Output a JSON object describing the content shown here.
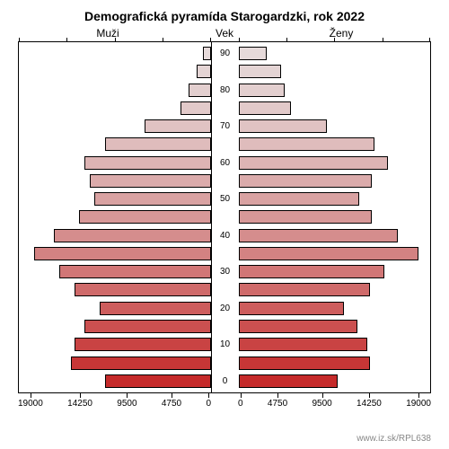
{
  "chart": {
    "type": "population-pyramid",
    "title": "Demografická pyramída Starogardzki, rok 2022",
    "labels": {
      "left": "Muži",
      "center": "Vek",
      "right": "Ženy"
    },
    "source": "www.iz.sk/RPL638",
    "background_color": "#ffffff",
    "border_color": "#000000",
    "title_fontsize": 14,
    "label_fontsize": 12,
    "tick_fontsize": 10,
    "x_axis": {
      "max": 19000,
      "ticks": [
        "19000",
        "14250",
        "9500",
        "4750",
        "0"
      ],
      "ticks_right": [
        "0",
        "4750",
        "9500",
        "14250",
        "19000"
      ]
    },
    "age_groups_top_to_bottom": [
      {
        "age": "90",
        "male": 800,
        "female": 2800,
        "male_color": "#e6dada",
        "female_color": "#e6dada"
      },
      {
        "age": "",
        "male": 1400,
        "female": 4200,
        "male_color": "#e4d4d4",
        "female_color": "#e4d4d4"
      },
      {
        "age": "80",
        "male": 2200,
        "female": 4600,
        "male_color": "#e3cfcf",
        "female_color": "#e3cfcf"
      },
      {
        "age": "",
        "male": 3000,
        "female": 5200,
        "male_color": "#e2caca",
        "female_color": "#e2caca"
      },
      {
        "age": "70",
        "male": 6500,
        "female": 8800,
        "male_color": "#e0c3c3",
        "female_color": "#e0c3c3"
      },
      {
        "age": "",
        "male": 10500,
        "female": 13500,
        "male_color": "#dfbcbc",
        "female_color": "#dfbcbc"
      },
      {
        "age": "60",
        "male": 12500,
        "female": 14800,
        "male_color": "#ddb4b4",
        "female_color": "#ddb4b4"
      },
      {
        "age": "",
        "male": 12000,
        "female": 13200,
        "male_color": "#dbabab",
        "female_color": "#dbabab"
      },
      {
        "age": "50",
        "male": 11500,
        "female": 12000,
        "male_color": "#d9a2a2",
        "female_color": "#d9a2a2"
      },
      {
        "age": "",
        "male": 13000,
        "female": 13200,
        "male_color": "#d79898",
        "female_color": "#d79898"
      },
      {
        "age": "40",
        "male": 15500,
        "female": 15800,
        "male_color": "#d58d8d",
        "female_color": "#d58d8d"
      },
      {
        "age": "",
        "male": 17500,
        "female": 17800,
        "male_color": "#d38282",
        "female_color": "#d38282"
      },
      {
        "age": "30",
        "male": 15000,
        "female": 14500,
        "male_color": "#d17676",
        "female_color": "#d17676"
      },
      {
        "age": "",
        "male": 13500,
        "female": 13000,
        "male_color": "#cf6a6a",
        "female_color": "#cf6a6a"
      },
      {
        "age": "20",
        "male": 11000,
        "female": 10500,
        "male_color": "#cd5d5d",
        "female_color": "#cd5d5d"
      },
      {
        "age": "",
        "male": 12500,
        "female": 11800,
        "male_color": "#cb5050",
        "female_color": "#cb5050"
      },
      {
        "age": "10",
        "male": 13500,
        "female": 12800,
        "male_color": "#c94343",
        "female_color": "#c94343"
      },
      {
        "age": "",
        "male": 13800,
        "female": 13000,
        "male_color": "#c73636",
        "female_color": "#c73636"
      },
      {
        "age": "0",
        "male": 10500,
        "female": 9800,
        "male_color": "#c52a2a",
        "female_color": "#c52a2a"
      }
    ]
  }
}
